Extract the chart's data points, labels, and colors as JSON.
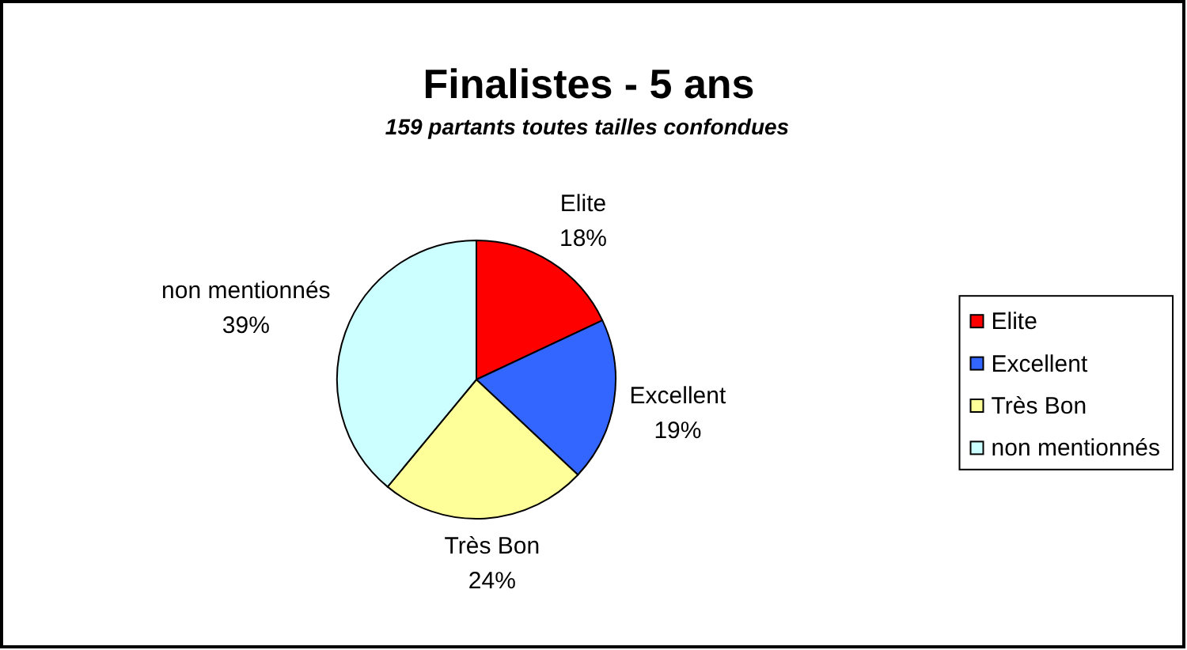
{
  "chart_data": {
    "type": "pie",
    "title": "Finalistes - 5 ans",
    "subtitle": "159 partants toutes tailles confondues",
    "categories": [
      "Elite",
      "Excellent",
      "Très Bon",
      "non mentionnés"
    ],
    "values": [
      18,
      19,
      24,
      39
    ],
    "colors": [
      "#ff0000",
      "#3366ff",
      "#ffff99",
      "#ccffff"
    ],
    "value_labels": [
      "18%",
      "19%",
      "24%",
      "39%"
    ],
    "legend": "right"
  }
}
